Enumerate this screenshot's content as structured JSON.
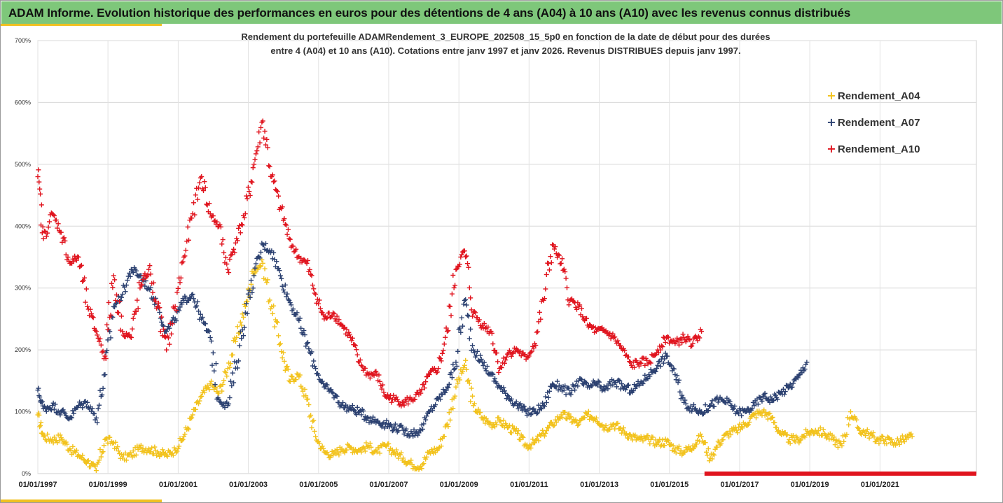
{
  "header": {
    "title": "ADAM Informe. Evolution historique des performances en euros pour des détentions de 4 ans (A04) à 10 ans (A10) avec les revenus connus distribués"
  },
  "colors": {
    "header_bg": "#7ec77a",
    "accent": "#f0c020",
    "A04": "#f2c21c",
    "A07": "#2b4070",
    "A10": "#e0141e"
  },
  "chart_data": {
    "type": "scatter",
    "marker": "plus",
    "title_lines": [
      "Rendement du portefeuille ADAMRendement_3_EUROPE_202508_15_5p0  en fonction de la date de début pour des durées",
      "entre 4 (A04) et 10 ans (A10). Cotations entre janv 1997 et janv 2026. Revenus DISTRIBUES depuis janv 1997."
    ],
    "xlabel": "",
    "ylabel": "",
    "ylim": [
      0,
      700
    ],
    "yticks": [
      "0%",
      "100%",
      "200%",
      "300%",
      "400%",
      "500%",
      "600%",
      "700%"
    ],
    "xlim": [
      "1997-01-01",
      "2023-10-01"
    ],
    "xticks": [
      "01/01/1997",
      "01/01/1999",
      "01/01/2001",
      "01/01/2003",
      "01/01/2005",
      "01/01/2007",
      "01/01/2009",
      "01/01/2011",
      "01/01/2013",
      "01/01/2015",
      "01/01/2017",
      "01/01/2019",
      "01/01/2021"
    ],
    "grid": true,
    "legend_position": "right",
    "series": [
      {
        "name": "Rendement_A04",
        "color": "#f2c21c",
        "points": [
          [
            "1997-01-01",
            95
          ],
          [
            "1997-03-01",
            60
          ],
          [
            "1997-06-01",
            55
          ],
          [
            "1997-09-01",
            58
          ],
          [
            "1997-12-01",
            40
          ],
          [
            "1998-03-01",
            30
          ],
          [
            "1998-06-01",
            20
          ],
          [
            "1998-09-01",
            5
          ],
          [
            "1998-12-01",
            55
          ],
          [
            "1999-03-01",
            50
          ],
          [
            "1999-06-01",
            25
          ],
          [
            "1999-09-01",
            30
          ],
          [
            "1999-12-01",
            42
          ],
          [
            "2000-03-01",
            40
          ],
          [
            "2000-06-01",
            35
          ],
          [
            "2000-09-01",
            30
          ],
          [
            "2000-12-01",
            38
          ],
          [
            "2001-03-01",
            60
          ],
          [
            "2001-06-01",
            95
          ],
          [
            "2001-09-01",
            125
          ],
          [
            "2001-12-01",
            145
          ],
          [
            "2002-03-01",
            130
          ],
          [
            "2002-06-01",
            170
          ],
          [
            "2002-09-01",
            220
          ],
          [
            "2002-12-01",
            270
          ],
          [
            "2003-03-01",
            330
          ],
          [
            "2003-06-01",
            340
          ],
          [
            "2003-09-01",
            270
          ],
          [
            "2003-12-01",
            210
          ],
          [
            "2004-03-01",
            150
          ],
          [
            "2004-06-01",
            160
          ],
          [
            "2004-09-01",
            120
          ],
          [
            "2004-12-01",
            60
          ],
          [
            "2005-03-01",
            35
          ],
          [
            "2005-06-01",
            30
          ],
          [
            "2005-09-01",
            40
          ],
          [
            "2005-12-01",
            42
          ],
          [
            "2006-03-01",
            38
          ],
          [
            "2006-06-01",
            45
          ],
          [
            "2006-09-01",
            35
          ],
          [
            "2006-12-01",
            45
          ],
          [
            "2007-03-01",
            35
          ],
          [
            "2007-06-01",
            25
          ],
          [
            "2007-09-01",
            15
          ],
          [
            "2007-12-01",
            12
          ],
          [
            "2008-03-01",
            35
          ],
          [
            "2008-06-01",
            40
          ],
          [
            "2008-09-01",
            80
          ],
          [
            "2008-12-01",
            140
          ],
          [
            "2009-03-01",
            175
          ],
          [
            "2009-06-01",
            110
          ],
          [
            "2009-09-01",
            90
          ],
          [
            "2009-12-01",
            80
          ],
          [
            "2010-03-01",
            85
          ],
          [
            "2010-06-01",
            75
          ],
          [
            "2010-09-01",
            65
          ],
          [
            "2010-12-01",
            45
          ],
          [
            "2011-03-01",
            50
          ],
          [
            "2011-06-01",
            65
          ],
          [
            "2011-09-01",
            80
          ],
          [
            "2011-12-01",
            95
          ],
          [
            "2012-03-01",
            90
          ],
          [
            "2012-06-01",
            80
          ],
          [
            "2012-09-01",
            95
          ],
          [
            "2012-12-01",
            90
          ],
          [
            "2013-03-01",
            75
          ],
          [
            "2013-06-01",
            80
          ],
          [
            "2013-09-01",
            70
          ],
          [
            "2013-12-01",
            60
          ],
          [
            "2014-03-01",
            55
          ],
          [
            "2014-06-01",
            55
          ],
          [
            "2014-09-01",
            50
          ],
          [
            "2014-12-01",
            52
          ],
          [
            "2015-03-01",
            40
          ],
          [
            "2015-06-01",
            35
          ],
          [
            "2015-09-01",
            45
          ],
          [
            "2015-12-01",
            60
          ],
          [
            "2016-03-01",
            25
          ],
          [
            "2016-06-01",
            50
          ],
          [
            "2016-09-01",
            65
          ],
          [
            "2016-12-01",
            70
          ],
          [
            "2017-03-01",
            80
          ],
          [
            "2017-06-01",
            95
          ],
          [
            "2017-09-01",
            100
          ],
          [
            "2017-12-01",
            90
          ],
          [
            "2018-03-01",
            65
          ],
          [
            "2018-06-01",
            55
          ],
          [
            "2018-09-01",
            55
          ],
          [
            "2018-12-01",
            65
          ],
          [
            "2019-03-01",
            70
          ],
          [
            "2019-06-01",
            65
          ],
          [
            "2019-09-01",
            55
          ],
          [
            "2019-12-01",
            45
          ],
          [
            "2020-03-01",
            100
          ],
          [
            "2020-06-01",
            70
          ],
          [
            "2020-09-01",
            65
          ],
          [
            "2020-12-01",
            55
          ],
          [
            "2021-03-01",
            55
          ],
          [
            "2021-06-01",
            50
          ],
          [
            "2021-09-01",
            55
          ],
          [
            "2021-12-01",
            60
          ]
        ]
      },
      {
        "name": "Rendement_A07",
        "color": "#2b4070",
        "points": [
          [
            "1997-01-01",
            135
          ],
          [
            "1997-03-01",
            105
          ],
          [
            "1997-06-01",
            110
          ],
          [
            "1997-09-01",
            100
          ],
          [
            "1997-12-01",
            90
          ],
          [
            "1998-03-01",
            110
          ],
          [
            "1998-06-01",
            115
          ],
          [
            "1998-09-01",
            90
          ],
          [
            "1998-12-01",
            160
          ],
          [
            "1999-03-01",
            270
          ],
          [
            "1999-06-01",
            290
          ],
          [
            "1999-09-01",
            330
          ],
          [
            "1999-12-01",
            320
          ],
          [
            "2000-03-01",
            300
          ],
          [
            "2000-06-01",
            270
          ],
          [
            "2000-09-01",
            230
          ],
          [
            "2000-12-01",
            250
          ],
          [
            "2001-03-01",
            280
          ],
          [
            "2001-06-01",
            290
          ],
          [
            "2001-09-01",
            250
          ],
          [
            "2001-12-01",
            220
          ],
          [
            "2002-03-01",
            120
          ],
          [
            "2002-06-01",
            110
          ],
          [
            "2002-09-01",
            180
          ],
          [
            "2002-12-01",
            260
          ],
          [
            "2003-03-01",
            320
          ],
          [
            "2003-06-01",
            370
          ],
          [
            "2003-09-01",
            360
          ],
          [
            "2003-12-01",
            320
          ],
          [
            "2004-03-01",
            280
          ],
          [
            "2004-06-01",
            250
          ],
          [
            "2004-09-01",
            210
          ],
          [
            "2004-12-01",
            170
          ],
          [
            "2005-03-01",
            140
          ],
          [
            "2005-06-01",
            130
          ],
          [
            "2005-09-01",
            110
          ],
          [
            "2005-12-01",
            105
          ],
          [
            "2006-03-01",
            100
          ],
          [
            "2006-06-01",
            90
          ],
          [
            "2006-09-01",
            85
          ],
          [
            "2006-12-01",
            80
          ],
          [
            "2007-03-01",
            75
          ],
          [
            "2007-06-01",
            70
          ],
          [
            "2007-09-01",
            65
          ],
          [
            "2007-12-01",
            70
          ],
          [
            "2008-03-01",
            100
          ],
          [
            "2008-06-01",
            120
          ],
          [
            "2008-09-01",
            140
          ],
          [
            "2008-12-01",
            180
          ],
          [
            "2009-03-01",
            280
          ],
          [
            "2009-06-01",
            200
          ],
          [
            "2009-09-01",
            180
          ],
          [
            "2009-12-01",
            160
          ],
          [
            "2010-03-01",
            140
          ],
          [
            "2010-06-01",
            125
          ],
          [
            "2010-09-01",
            110
          ],
          [
            "2010-12-01",
            100
          ],
          [
            "2011-03-01",
            100
          ],
          [
            "2011-06-01",
            110
          ],
          [
            "2011-09-01",
            145
          ],
          [
            "2011-12-01",
            140
          ],
          [
            "2012-03-01",
            130
          ],
          [
            "2012-06-01",
            150
          ],
          [
            "2012-09-01",
            140
          ],
          [
            "2012-12-01",
            145
          ],
          [
            "2013-03-01",
            135
          ],
          [
            "2013-06-01",
            150
          ],
          [
            "2013-09-01",
            140
          ],
          [
            "2013-12-01",
            135
          ],
          [
            "2014-03-01",
            145
          ],
          [
            "2014-06-01",
            160
          ],
          [
            "2014-09-01",
            175
          ],
          [
            "2014-12-01",
            190
          ],
          [
            "2015-03-01",
            160
          ],
          [
            "2015-06-01",
            115
          ],
          [
            "2015-09-01",
            105
          ],
          [
            "2015-12-01",
            100
          ],
          [
            "2016-03-01",
            110
          ],
          [
            "2016-06-01",
            120
          ],
          [
            "2016-09-01",
            115
          ],
          [
            "2016-12-01",
            100
          ],
          [
            "2017-03-01",
            100
          ],
          [
            "2017-06-01",
            110
          ],
          [
            "2017-09-01",
            125
          ],
          [
            "2017-12-01",
            120
          ],
          [
            "2018-03-01",
            130
          ],
          [
            "2018-06-01",
            140
          ],
          [
            "2018-09-01",
            155
          ],
          [
            "2018-12-01",
            180
          ]
        ]
      },
      {
        "name": "Rendement_A10",
        "color": "#e0141e",
        "points": [
          [
            "1997-01-01",
            480
          ],
          [
            "1997-03-01",
            380
          ],
          [
            "1997-06-01",
            420
          ],
          [
            "1997-09-01",
            390
          ],
          [
            "1997-12-01",
            340
          ],
          [
            "1998-03-01",
            350
          ],
          [
            "1998-06-01",
            270
          ],
          [
            "1998-09-01",
            230
          ],
          [
            "1998-12-01",
            190
          ],
          [
            "1999-03-01",
            320
          ],
          [
            "1999-06-01",
            230
          ],
          [
            "1999-09-01",
            220
          ],
          [
            "1999-12-01",
            300
          ],
          [
            "2000-03-01",
            330
          ],
          [
            "2000-06-01",
            270
          ],
          [
            "2000-09-01",
            200
          ],
          [
            "2000-12-01",
            270
          ],
          [
            "2001-03-01",
            350
          ],
          [
            "2001-06-01",
            420
          ],
          [
            "2001-09-01",
            480
          ],
          [
            "2001-12-01",
            420
          ],
          [
            "2002-03-01",
            400
          ],
          [
            "2002-06-01",
            330
          ],
          [
            "2002-09-01",
            380
          ],
          [
            "2002-12-01",
            420
          ],
          [
            "2003-03-01",
            500
          ],
          [
            "2003-06-01",
            570
          ],
          [
            "2003-09-01",
            480
          ],
          [
            "2003-12-01",
            430
          ],
          [
            "2004-03-01",
            380
          ],
          [
            "2004-06-01",
            350
          ],
          [
            "2004-09-01",
            340
          ],
          [
            "2004-12-01",
            290
          ],
          [
            "2005-03-01",
            250
          ],
          [
            "2005-06-01",
            260
          ],
          [
            "2005-09-01",
            240
          ],
          [
            "2005-12-01",
            220
          ],
          [
            "2006-03-01",
            180
          ],
          [
            "2006-06-01",
            160
          ],
          [
            "2006-09-01",
            160
          ],
          [
            "2006-12-01",
            125
          ],
          [
            "2007-03-01",
            120
          ],
          [
            "2007-06-01",
            115
          ],
          [
            "2007-09-01",
            120
          ],
          [
            "2007-12-01",
            130
          ],
          [
            "2008-03-01",
            160
          ],
          [
            "2008-06-01",
            170
          ],
          [
            "2008-09-01",
            230
          ],
          [
            "2008-12-01",
            330
          ],
          [
            "2009-03-01",
            360
          ],
          [
            "2009-06-01",
            260
          ],
          [
            "2009-09-01",
            240
          ],
          [
            "2009-12-01",
            230
          ],
          [
            "2010-03-01",
            170
          ],
          [
            "2010-06-01",
            195
          ],
          [
            "2010-09-01",
            200
          ],
          [
            "2010-12-01",
            185
          ],
          [
            "2011-03-01",
            210
          ],
          [
            "2011-06-01",
            280
          ],
          [
            "2011-09-01",
            370
          ],
          [
            "2011-12-01",
            340
          ],
          [
            "2012-03-01",
            280
          ],
          [
            "2012-06-01",
            270
          ],
          [
            "2012-09-01",
            240
          ],
          [
            "2012-12-01",
            230
          ],
          [
            "2013-03-01",
            230
          ],
          [
            "2013-06-01",
            220
          ],
          [
            "2013-09-01",
            200
          ],
          [
            "2013-12-01",
            175
          ],
          [
            "2014-03-01",
            180
          ],
          [
            "2014-06-01",
            180
          ],
          [
            "2014-09-01",
            200
          ],
          [
            "2014-12-01",
            220
          ],
          [
            "2015-03-01",
            210
          ],
          [
            "2015-06-01",
            220
          ],
          [
            "2015-09-01",
            210
          ],
          [
            "2015-12-01",
            230
          ]
        ],
        "zero_run": {
          "from": "2016-01-01",
          "to": "2023-10-01",
          "value": 0
        }
      }
    ]
  }
}
